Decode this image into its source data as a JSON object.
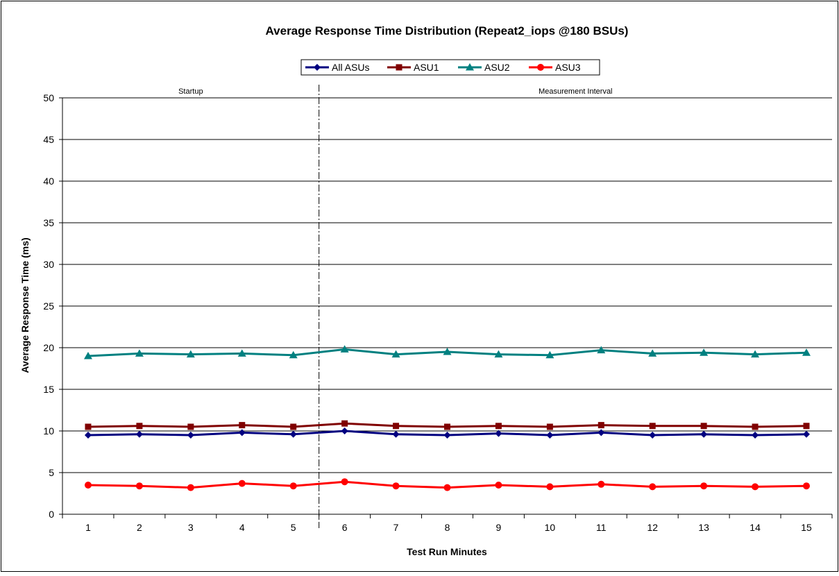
{
  "chart_data": {
    "type": "line",
    "title": "Average Response Time Distribution (Repeat2_iops @180 BSUs)",
    "xlabel": "Test Run Minutes",
    "ylabel": "Average Response Time (ms)",
    "ylim": [
      0,
      50
    ],
    "yticks": [
      0,
      5,
      10,
      15,
      20,
      25,
      30,
      35,
      40,
      45,
      50
    ],
    "categories": [
      "1",
      "2",
      "3",
      "4",
      "5",
      "6",
      "7",
      "8",
      "9",
      "10",
      "11",
      "12",
      "13",
      "14",
      "15"
    ],
    "grid": true,
    "legend_position": "top",
    "regions": [
      {
        "label": "Startup"
      },
      {
        "label": "Measurement Interval"
      }
    ],
    "divider_after_category": 5,
    "series": [
      {
        "name": "All ASUs",
        "color": "#000080",
        "marker": "diamond",
        "values": [
          9.5,
          9.6,
          9.5,
          9.8,
          9.6,
          10.0,
          9.6,
          9.5,
          9.7,
          9.5,
          9.8,
          9.5,
          9.6,
          9.5,
          9.6
        ]
      },
      {
        "name": "ASU1",
        "color": "#800000",
        "marker": "square",
        "values": [
          10.5,
          10.6,
          10.5,
          10.7,
          10.5,
          10.9,
          10.6,
          10.5,
          10.6,
          10.5,
          10.7,
          10.6,
          10.6,
          10.5,
          10.6
        ]
      },
      {
        "name": "ASU2",
        "color": "#008080",
        "marker": "triangle",
        "values": [
          19.0,
          19.3,
          19.2,
          19.3,
          19.1,
          19.8,
          19.2,
          19.5,
          19.2,
          19.1,
          19.7,
          19.3,
          19.4,
          19.2,
          19.4
        ]
      },
      {
        "name": "ASU3",
        "color": "#ff0000",
        "marker": "circle",
        "values": [
          3.5,
          3.4,
          3.2,
          3.7,
          3.4,
          3.9,
          3.4,
          3.2,
          3.5,
          3.3,
          3.6,
          3.3,
          3.4,
          3.3,
          3.4
        ]
      }
    ]
  }
}
